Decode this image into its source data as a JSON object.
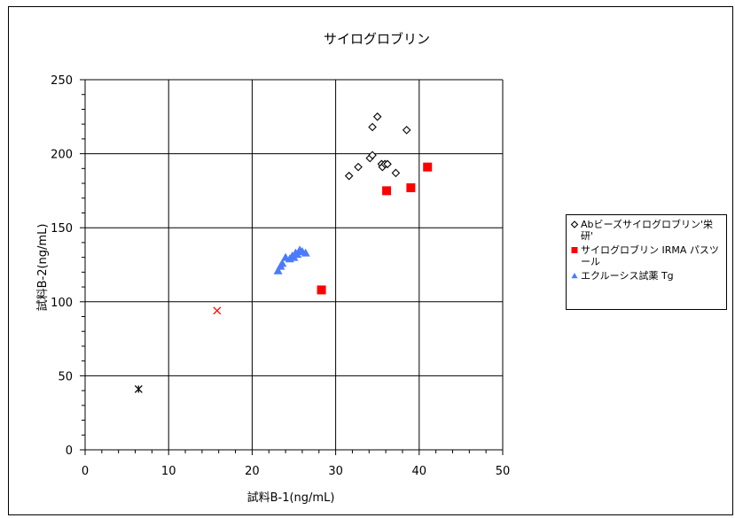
{
  "chart_data": {
    "type": "scatter",
    "title": "サイログロブリン",
    "xlabel": "試料B-1(ng/mL)",
    "ylabel": "試料B-2(ng/mL)",
    "xlim": [
      0,
      50
    ],
    "ylim": [
      0,
      250
    ],
    "x_ticks": [
      "0",
      "10",
      "20",
      "30",
      "40",
      "50"
    ],
    "y_ticks": [
      "0",
      "50",
      "100",
      "150",
      "200",
      "250"
    ],
    "grid": true,
    "legend_position": "right",
    "series": [
      {
        "name": "Abビーズサイログロブリン'栄研'",
        "marker": "diamond-open",
        "color": "#000000",
        "points": [
          [
            31.6,
            185
          ],
          [
            32.7,
            191
          ],
          [
            34.1,
            197
          ],
          [
            34.4,
            199
          ],
          [
            34.4,
            218
          ],
          [
            35.0,
            225
          ],
          [
            35.5,
            193
          ],
          [
            35.6,
            191
          ],
          [
            35.9,
            193
          ],
          [
            36.2,
            193
          ],
          [
            37.2,
            187
          ],
          [
            38.5,
            216
          ]
        ]
      },
      {
        "name": "サイログロブリン IRMA パスツール",
        "marker": "square",
        "color": "#ff0000",
        "points": [
          [
            28.3,
            108
          ],
          [
            36.1,
            175
          ],
          [
            39.0,
            177
          ],
          [
            41.0,
            191
          ]
        ]
      },
      {
        "name": "エクルーシス試薬 Tg",
        "marker": "triangle",
        "color": "#4a7bff",
        "points": [
          [
            23.1,
            121
          ],
          [
            23.4,
            124
          ],
          [
            23.6,
            126
          ],
          [
            24.0,
            130
          ],
          [
            24.5,
            129
          ],
          [
            24.8,
            131
          ],
          [
            25.0,
            130
          ],
          [
            25.2,
            133
          ],
          [
            25.4,
            132
          ],
          [
            25.7,
            135
          ],
          [
            26.0,
            134
          ],
          [
            26.4,
            133
          ]
        ]
      },
      {
        "name": "",
        "marker": "x",
        "color": "#ff0000",
        "points": [
          [
            15.8,
            94
          ]
        ]
      },
      {
        "name": "",
        "marker": "star",
        "color": "#000000",
        "points": [
          [
            6.4,
            41
          ]
        ]
      }
    ]
  }
}
